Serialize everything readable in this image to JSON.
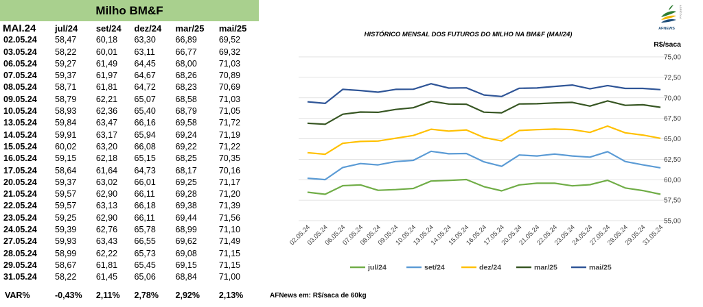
{
  "table": {
    "title": "Milho BM&F",
    "header_first": "MAI.24",
    "columns": [
      "jul/24",
      "set/24",
      "dez/24",
      "mar/25",
      "mai/25"
    ],
    "rows": [
      {
        "date": "02.05.24",
        "values": [
          "58,47",
          "60,18",
          "63,30",
          "66,89",
          "69,52"
        ]
      },
      {
        "date": "03.05.24",
        "values": [
          "58,22",
          "60,01",
          "63,11",
          "66,77",
          "69,32"
        ]
      },
      {
        "date": "06.05.24",
        "values": [
          "59,27",
          "61,49",
          "64,45",
          "68,00",
          "71,03"
        ]
      },
      {
        "date": "07.05.24",
        "values": [
          "59,37",
          "61,97",
          "64,67",
          "68,26",
          "70,89"
        ]
      },
      {
        "date": "08.05.24",
        "values": [
          "58,71",
          "61,81",
          "64,72",
          "68,23",
          "70,69"
        ]
      },
      {
        "date": "09.05.24",
        "values": [
          "58,79",
          "62,21",
          "65,07",
          "68,58",
          "71,03"
        ]
      },
      {
        "date": "10.05.24",
        "values": [
          "58,93",
          "62,36",
          "65,40",
          "68,79",
          "71,05"
        ]
      },
      {
        "date": "13.05.24",
        "values": [
          "59,84",
          "63,47",
          "66,16",
          "69,58",
          "71,72"
        ]
      },
      {
        "date": "14.05.24",
        "values": [
          "59,91",
          "63,17",
          "65,94",
          "69,24",
          "71,19"
        ]
      },
      {
        "date": "15.05.24",
        "values": [
          "60,02",
          "63,20",
          "66,08",
          "69,22",
          "71,22"
        ]
      },
      {
        "date": "16.05.24",
        "values": [
          "59,15",
          "62,18",
          "65,15",
          "68,25",
          "70,35"
        ]
      },
      {
        "date": "17.05.24",
        "values": [
          "58,64",
          "61,64",
          "64,73",
          "68,17",
          "70,16"
        ]
      },
      {
        "date": "20.05.24",
        "values": [
          "59,37",
          "63,02",
          "66,01",
          "69,25",
          "71,17"
        ]
      },
      {
        "date": "21.05.24",
        "values": [
          "59,57",
          "62,90",
          "66,11",
          "69,28",
          "71,20"
        ]
      },
      {
        "date": "22.05.24",
        "values": [
          "59,57",
          "63,13",
          "66,18",
          "69,38",
          "71,39"
        ]
      },
      {
        "date": "23.05.24",
        "values": [
          "59,25",
          "62,90",
          "66,11",
          "69,44",
          "71,56"
        ]
      },
      {
        "date": "24.05.24",
        "values": [
          "59,39",
          "62,76",
          "65,78",
          "68,99",
          "71,10"
        ]
      },
      {
        "date": "27.05.24",
        "values": [
          "59,93",
          "63,43",
          "66,55",
          "69,62",
          "71,49"
        ]
      },
      {
        "date": "28.05.24",
        "values": [
          "58,99",
          "62,22",
          "65,73",
          "69,08",
          "71,15"
        ]
      },
      {
        "date": "29.05.24",
        "values": [
          "58,67",
          "61,81",
          "65,45",
          "69,15",
          "71,15"
        ]
      },
      {
        "date": "31.05.24",
        "values": [
          "58,22",
          "61,45",
          "65,06",
          "68,84",
          "71,00"
        ]
      }
    ],
    "var_label": "VAR%",
    "var_values": [
      "-0,43%",
      "2,11%",
      "2,78%",
      "2,92%",
      "2,13%"
    ]
  },
  "source_note": "AFNews em: R$/saca de 60kg",
  "logo_text": "AFNEWS",
  "logo_side_text": "AGRÍCOLA",
  "chart_data": {
    "type": "line",
    "title": "HISTÓRICO MENSAL DOS FUTUROS DO MILHO NA BM&F (MAI/24)",
    "ylabel": "R$/saca",
    "ylim": [
      55,
      75
    ],
    "yticks": [
      55,
      57.5,
      60,
      62.5,
      65,
      67.5,
      70,
      72.5,
      75
    ],
    "ytick_labels": [
      "55,00",
      "57,50",
      "60,00",
      "62,50",
      "65,00",
      "67,50",
      "70,00",
      "72,50",
      "75,00"
    ],
    "x": [
      "02.05.24",
      "03.05.24",
      "06.05.24",
      "07.05.24",
      "08.05.24",
      "09.05.24",
      "10.05.24",
      "13.05.24",
      "14.05.24",
      "15.05.24",
      "16.05.24",
      "17.05.24",
      "20.05.24",
      "21.05.24",
      "22.05.24",
      "23.05.24",
      "24.05.24",
      "27.05.24",
      "28.05.24",
      "29.05.24",
      "31.05.24"
    ],
    "grid": true,
    "legend_position": "bottom",
    "series": [
      {
        "name": "jul/24",
        "color": "#70ad47",
        "values": [
          58.47,
          58.22,
          59.27,
          59.37,
          58.71,
          58.79,
          58.93,
          59.84,
          59.91,
          60.02,
          59.15,
          58.64,
          59.37,
          59.57,
          59.57,
          59.25,
          59.39,
          59.93,
          58.99,
          58.67,
          58.22
        ]
      },
      {
        "name": "set/24",
        "color": "#5b9bd5",
        "values": [
          60.18,
          60.01,
          61.49,
          61.97,
          61.81,
          62.21,
          62.36,
          63.47,
          63.17,
          63.2,
          62.18,
          61.64,
          63.02,
          62.9,
          63.13,
          62.9,
          62.76,
          63.43,
          62.22,
          61.81,
          61.45
        ]
      },
      {
        "name": "dez/24",
        "color": "#ffc000",
        "values": [
          63.3,
          63.11,
          64.45,
          64.67,
          64.72,
          65.07,
          65.4,
          66.16,
          65.94,
          66.08,
          65.15,
          64.73,
          66.01,
          66.11,
          66.18,
          66.11,
          65.78,
          66.55,
          65.73,
          65.45,
          65.06
        ]
      },
      {
        "name": "mar/25",
        "color": "#375623",
        "values": [
          66.89,
          66.77,
          68.0,
          68.26,
          68.23,
          68.58,
          68.79,
          69.58,
          69.24,
          69.22,
          68.25,
          68.17,
          69.25,
          69.28,
          69.38,
          69.44,
          68.99,
          69.62,
          69.08,
          69.15,
          68.84
        ]
      },
      {
        "name": "mai/25",
        "color": "#2f5597",
        "values": [
          69.52,
          69.32,
          71.03,
          70.89,
          70.69,
          71.03,
          71.05,
          71.72,
          71.19,
          71.22,
          70.35,
          70.16,
          71.17,
          71.2,
          71.39,
          71.56,
          71.1,
          71.49,
          71.15,
          71.15,
          71.0
        ]
      }
    ]
  }
}
